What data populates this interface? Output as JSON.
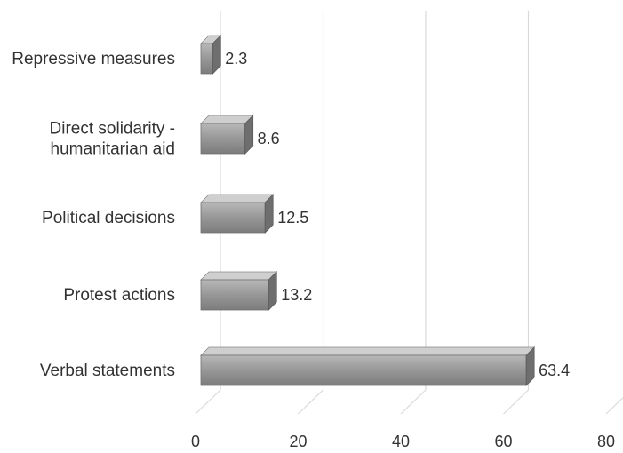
{
  "chart_data": {
    "type": "bar",
    "orientation": "horizontal",
    "style": "3d",
    "categories": [
      [
        "Repressive measures"
      ],
      [
        "Direct solidarity -",
        "humanitarian aid"
      ],
      [
        "Political decisions"
      ],
      [
        "Protest actions"
      ],
      [
        "Verbal statements"
      ]
    ],
    "values": [
      2.3,
      8.6,
      12.5,
      13.2,
      63.4
    ],
    "data_labels": [
      "2.3",
      "8.6",
      "12.5",
      "13.2",
      "63.4"
    ],
    "x_ticks": [
      "0",
      "20",
      "40",
      "60",
      "80"
    ],
    "xlim": [
      0,
      80
    ],
    "title": "",
    "xlabel": "",
    "ylabel": "",
    "grid": true,
    "colors": {
      "bar_front": "#9a9a9a",
      "bar_top": "#cfcfcf",
      "bar_side": "#6e6e6e",
      "grid": "#d9d9d9",
      "text": "#333333"
    }
  }
}
